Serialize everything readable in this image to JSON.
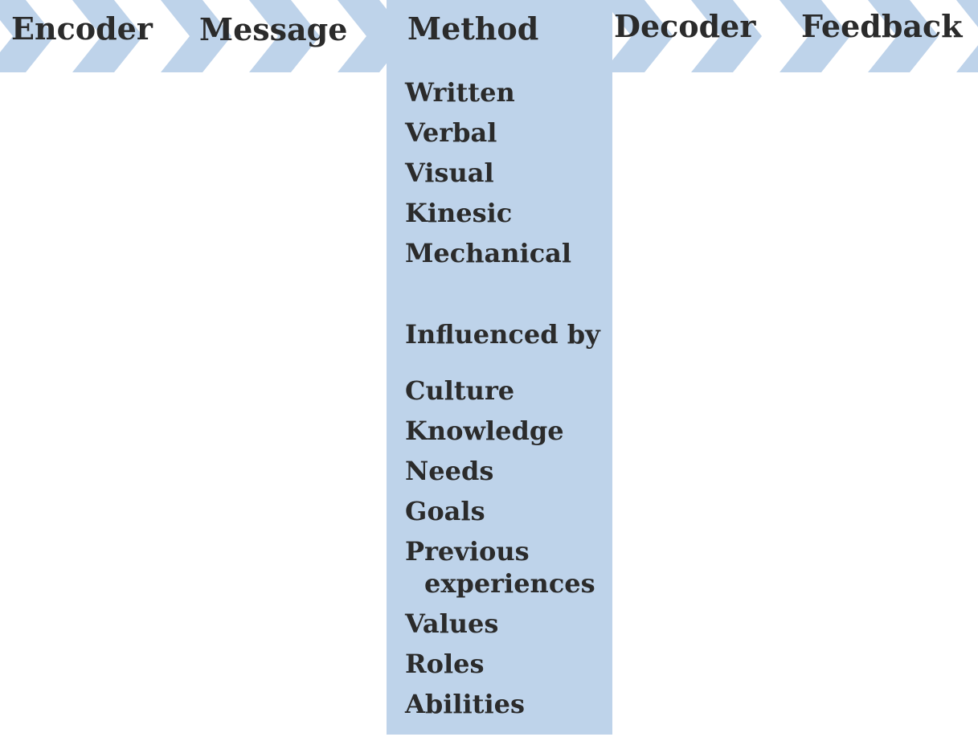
{
  "stages": [
    {
      "label": "Encoder"
    },
    {
      "label": "Message"
    },
    {
      "label": "Method"
    },
    {
      "label": "Decoder"
    },
    {
      "label": "Feedback"
    }
  ],
  "method": {
    "types": [
      "Written",
      "Verbal",
      "Visual",
      "Kinesic",
      "Mechanical"
    ],
    "influenced_heading": "Influenced by",
    "influences": [
      "Culture",
      "Knowledge",
      "Needs",
      "Goals",
      [
        "Previous",
        "experiences"
      ],
      "Values",
      "Roles",
      "Abilities"
    ]
  },
  "colors": {
    "chevron": "#bed3ea",
    "column": "#bed3ea",
    "text": "#2b2b2b"
  }
}
